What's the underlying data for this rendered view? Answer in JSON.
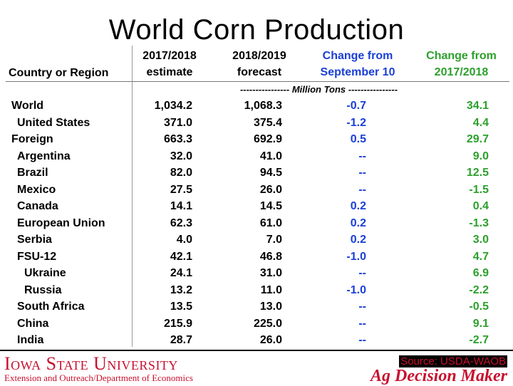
{
  "title": "World Corn Production",
  "headers": {
    "country": "Country or Region",
    "col1_line1": "2017/2018",
    "col1_line2": "estimate",
    "col2_line1": "2018/2019",
    "col2_line2": "forecast",
    "col3_line1": "Change from",
    "col3_line2": "September 10",
    "col4_line1": "Change from",
    "col4_line2": "2017/2018"
  },
  "units": "---------------- Million Tons ----------------",
  "rows": [
    {
      "name": "World",
      "indent": 0,
      "v1": "1,034.2",
      "v2": "1,068.3",
      "v3": "-0.7",
      "v4": "34.1"
    },
    {
      "name": "United States",
      "indent": 1,
      "v1": "371.0",
      "v2": "375.4",
      "v3": "-1.2",
      "v4": "4.4"
    },
    {
      "name": "Foreign",
      "indent": 0,
      "v1": "663.3",
      "v2": "692.9",
      "v3": "0.5",
      "v4": "29.7"
    },
    {
      "name": "Argentina",
      "indent": 1,
      "v1": "32.0",
      "v2": "41.0",
      "v3": "--",
      "v4": "9.0"
    },
    {
      "name": "Brazil",
      "indent": 1,
      "v1": "82.0",
      "v2": "94.5",
      "v3": "--",
      "v4": "12.5"
    },
    {
      "name": "Mexico",
      "indent": 1,
      "v1": "27.5",
      "v2": "26.0",
      "v3": "--",
      "v4": "-1.5"
    },
    {
      "name": "Canada",
      "indent": 1,
      "v1": "14.1",
      "v2": "14.5",
      "v3": "0.2",
      "v4": "0.4"
    },
    {
      "name": "European Union",
      "indent": 1,
      "v1": "62.3",
      "v2": "61.0",
      "v3": "0.2",
      "v4": "-1.3"
    },
    {
      "name": "Serbia",
      "indent": 1,
      "v1": "4.0",
      "v2": "7.0",
      "v3": "0.2",
      "v4": "3.0"
    },
    {
      "name": "FSU-12",
      "indent": 1,
      "v1": "42.1",
      "v2": "46.8",
      "v3": "-1.0",
      "v4": "4.7"
    },
    {
      "name": "Ukraine",
      "indent": 2,
      "v1": "24.1",
      "v2": "31.0",
      "v3": "--",
      "v4": "6.9"
    },
    {
      "name": "Russia",
      "indent": 2,
      "v1": "13.2",
      "v2": "11.0",
      "v3": "-1.0",
      "v4": "-2.2"
    },
    {
      "name": "South Africa",
      "indent": 1,
      "v1": "13.5",
      "v2": "13.0",
      "v3": "--",
      "v4": "-0.5"
    },
    {
      "name": "China",
      "indent": 1,
      "v1": "215.9",
      "v2": "225.0",
      "v3": "--",
      "v4": "9.1"
    },
    {
      "name": "India",
      "indent": 1,
      "v1": "28.7",
      "v2": "26.0",
      "v3": "--",
      "v4": "-2.7"
    }
  ],
  "footer": {
    "university": "Iowa State University",
    "department": "Extension and Outreach/Department of Economics",
    "source": "Source: USDA-WAOB",
    "brand": "Ag Decision Maker"
  },
  "colors": {
    "blue": "#1a3fd6",
    "green": "#2ca02c",
    "isu_red": "#c8102e"
  }
}
